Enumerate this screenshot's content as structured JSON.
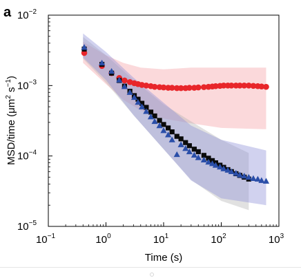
{
  "panel_label": "a",
  "chart_data": {
    "type": "scatter",
    "xlabel": "Time (s)",
    "ylabel": {
      "main": "MSD/time (μm",
      "sup1": "2",
      "mid": " s",
      "sup2": "−1",
      "end": ")"
    },
    "xscale": "log",
    "yscale": "log",
    "xlim": [
      0.1,
      1000
    ],
    "ylim": [
      1e-05,
      0.01
    ],
    "x_ticks": [
      {
        "value": 0.1,
        "base": "10",
        "exp": "−1"
      },
      {
        "value": 1,
        "base": "10",
        "exp": "0"
      },
      {
        "value": 10,
        "base": "10",
        "exp": "1"
      },
      {
        "value": 100,
        "base": "10",
        "exp": "2"
      },
      {
        "value": 1000,
        "base": "10",
        "exp": "3"
      }
    ],
    "y_ticks": [
      {
        "value": 1e-05,
        "base": "10",
        "exp": "−5"
      },
      {
        "value": 0.0001,
        "base": "10",
        "exp": "−4"
      },
      {
        "value": 0.001,
        "base": "10",
        "exp": "−3"
      },
      {
        "value": 0.01,
        "base": "10",
        "exp": "−2"
      }
    ],
    "grid": false,
    "legend": "none",
    "series": [
      {
        "marker": "circle",
        "color": "#e8262a",
        "band_color": "#f5a0a6",
        "x": [
          0.42,
          0.85,
          1.25,
          1.7,
          2.1,
          2.6,
          3.1,
          3.6,
          4.2,
          5,
          6,
          7,
          8.5,
          10,
          12,
          14,
          17,
          20,
          24,
          28,
          34,
          40,
          50,
          60,
          70,
          80,
          95,
          110,
          130,
          150,
          180,
          210,
          250,
          300,
          360,
          430,
          500,
          600
        ],
        "y": [
          0.0029,
          0.0019,
          0.0015,
          0.00128,
          0.00118,
          0.00112,
          0.00108,
          0.00105,
          0.00102,
          0.001,
          0.00098,
          0.00096,
          0.00095,
          0.00094,
          0.00093,
          0.00093,
          0.00092,
          0.00092,
          0.00092,
          0.00093,
          0.00093,
          0.00094,
          0.00095,
          0.00096,
          0.00097,
          0.00098,
          0.00099,
          0.001,
          0.001,
          0.001,
          0.001,
          0.001,
          0.001,
          0.001,
          0.00099,
          0.00098,
          0.00097,
          0.00096
        ],
        "band_x": [
          0.4,
          1,
          2,
          4,
          10,
          30,
          100,
          600
        ],
        "band_low": [
          0.0021,
          0.00105,
          0.00063,
          0.00044,
          0.00034,
          0.00029,
          0.00025,
          0.00024
        ],
        "band_high": [
          0.0042,
          0.0027,
          0.0021,
          0.0018,
          0.0017,
          0.0018,
          0.0018,
          0.0018
        ]
      },
      {
        "marker": "square",
        "color": "#0a0a0a",
        "band_color": "#b4b4b4",
        "x": [
          0.42,
          0.85,
          1.25,
          1.7,
          2.1,
          2.6,
          3.1,
          3.6,
          4.2,
          5,
          6,
          7,
          8.5,
          10,
          12,
          14,
          17,
          20,
          24,
          28,
          34,
          40,
          50,
          60,
          70,
          80,
          95,
          110,
          130,
          150,
          180,
          210,
          250,
          300
        ],
        "y": [
          0.0033,
          0.002,
          0.0015,
          0.00118,
          0.00098,
          0.00083,
          0.00072,
          0.00064,
          0.00056,
          0.00049,
          0.00042,
          0.00037,
          0.00032,
          0.00028,
          0.00025,
          0.00022,
          0.00019,
          0.000175,
          0.000155,
          0.00014,
          0.000125,
          0.000115,
          0.000102,
          9.3e-05,
          8.6e-05,
          8e-05,
          7.4e-05,
          6.9e-05,
          6.4e-05,
          6e-05,
          5.6e-05,
          5.3e-05,
          5e-05,
          4.7e-05
        ],
        "band_x": [
          0.4,
          1,
          3,
          10,
          30,
          100,
          300
        ],
        "band_low": [
          0.0024,
          0.0011,
          0.00038,
          0.000125,
          4.6e-05,
          2.3e-05,
          1.7e-05
        ],
        "band_high": [
          0.0049,
          0.0027,
          0.0012,
          0.00054,
          0.00031,
          0.00017,
          0.00011
        ]
      },
      {
        "marker": "triangle",
        "color": "#2a4ea8",
        "band_color": "#8d8fd6",
        "x": [
          0.42,
          0.85,
          1.25,
          1.7,
          2.1,
          2.6,
          3.1,
          3.6,
          4.2,
          5,
          6,
          7,
          8.5,
          10,
          12,
          14,
          17,
          20,
          24,
          28,
          34,
          40,
          50,
          60,
          70,
          80,
          95,
          110,
          130,
          150,
          180,
          210,
          250,
          300,
          360,
          430,
          500,
          600
        ],
        "y": [
          0.0035,
          0.0021,
          0.0016,
          0.0012,
          0.00097,
          0.0008,
          0.00068,
          0.00058,
          0.0005,
          0.00043,
          0.00036,
          0.00031,
          0.00027,
          0.00023,
          0.0002,
          0.00017,
          0.000105,
          0.000145,
          0.000128,
          0.000115,
          0.000103,
          9.5e-05,
          8.8e-05,
          8.2e-05,
          7.8e-05,
          7.4e-05,
          7e-05,
          6.6e-05,
          6.3e-05,
          6e-05,
          5.7e-05,
          5.4e-05,
          5.2e-05,
          5e-05,
          4.8e-05,
          4.7e-05,
          4.5e-05,
          4.4e-05
        ],
        "band_x": [
          0.4,
          1,
          3,
          10,
          30,
          100,
          600
        ],
        "band_low": [
          0.0025,
          0.0012,
          0.00038,
          0.000125,
          4.5e-05,
          2.5e-05,
          2e-05
        ],
        "band_high": [
          0.0055,
          0.003,
          0.0013,
          0.00057,
          0.00027,
          0.00017,
          0.00012
        ]
      }
    ]
  }
}
